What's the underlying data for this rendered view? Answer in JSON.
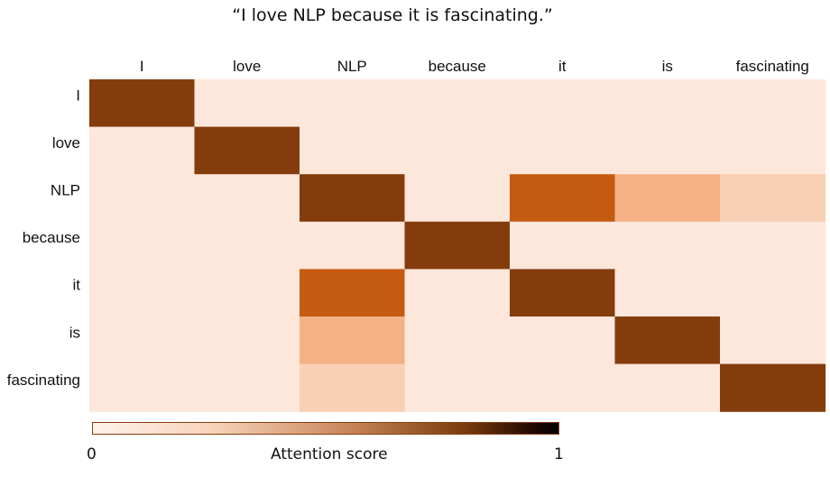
{
  "chart_data": {
    "type": "heatmap",
    "title": "“I love NLP because it is fascinating.”",
    "x_labels": [
      "I",
      "love",
      "NLP",
      "because",
      "it",
      "is",
      "fascinating"
    ],
    "y_labels": [
      "I",
      "love",
      "NLP",
      "because",
      "it",
      "is",
      "fascinating"
    ],
    "values": [
      [
        1.0,
        0.05,
        0.05,
        0.05,
        0.05,
        0.05,
        0.05
      ],
      [
        0.05,
        1.0,
        0.05,
        0.05,
        0.05,
        0.05,
        0.05
      ],
      [
        0.05,
        0.05,
        1.0,
        0.05,
        0.8,
        0.4,
        0.25
      ],
      [
        0.05,
        0.05,
        0.05,
        1.0,
        0.05,
        0.05,
        0.05
      ],
      [
        0.05,
        0.05,
        0.8,
        0.05,
        1.0,
        0.05,
        0.05
      ],
      [
        0.05,
        0.05,
        0.4,
        0.05,
        0.05,
        1.0,
        0.05
      ],
      [
        0.05,
        0.05,
        0.25,
        0.05,
        0.05,
        0.05,
        1.0
      ]
    ],
    "x_axis_position": "top",
    "colorbar": {
      "label": "Attention score",
      "min_label": "0",
      "max_label": "1",
      "range": [
        0,
        1
      ]
    },
    "colors": {
      "low": "#fce7da",
      "light": "#f9d0b4",
      "mid": "#f4b186",
      "strong": "#c55a11",
      "max": "#843c0c"
    }
  }
}
